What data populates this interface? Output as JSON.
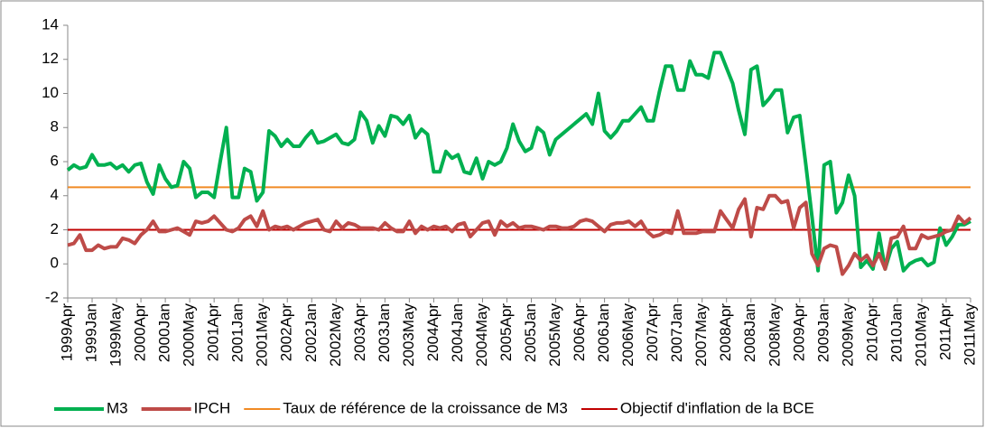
{
  "chart_data": {
    "type": "line",
    "categories": [
      "1999Apr",
      null,
      null,
      null,
      "1999Jan",
      null,
      null,
      null,
      "1999May",
      null,
      null,
      null,
      "2000Apr",
      null,
      null,
      null,
      "2000Jan",
      null,
      null,
      null,
      "2000May",
      null,
      null,
      null,
      "2001Apr",
      null,
      null,
      null,
      "2001Jan",
      null,
      null,
      null,
      "2001May",
      null,
      null,
      null,
      "2002Apr",
      null,
      null,
      null,
      "2002Jan",
      null,
      null,
      null,
      "2002May",
      null,
      null,
      null,
      "2003Apr",
      null,
      null,
      null,
      "2003Jan",
      null,
      null,
      null,
      "2003May",
      null,
      null,
      null,
      "2004Apr",
      null,
      null,
      null,
      "2004Jan",
      null,
      null,
      null,
      "2004May",
      null,
      null,
      null,
      "2005Apr",
      null,
      null,
      null,
      "2005Jan",
      null,
      null,
      null,
      "2005May",
      null,
      null,
      null,
      "2006Apr",
      null,
      null,
      null,
      "2006Jan",
      null,
      null,
      null,
      "2006May",
      null,
      null,
      null,
      "2007Apr",
      null,
      null,
      null,
      "2007Jan",
      null,
      null,
      null,
      "2007May",
      null,
      null,
      null,
      "2008Apr",
      null,
      null,
      null,
      "2008Jan",
      null,
      null,
      null,
      "2008May",
      null,
      null,
      null,
      "2009Apr",
      null,
      null,
      null,
      "2009Jan",
      null,
      null,
      null,
      "2009May",
      null,
      null,
      null,
      "2010Apr",
      null,
      null,
      null,
      "2010Jan",
      null,
      null,
      null,
      "2010May",
      null,
      null,
      null,
      "2011Apr",
      null,
      null,
      null,
      "2011May"
    ],
    "series": [
      {
        "name": "M3",
        "color": "#00b050",
        "width": 4,
        "values": [
          5.5,
          5.8,
          5.6,
          5.7,
          6.4,
          5.8,
          5.8,
          5.9,
          5.6,
          5.8,
          5.4,
          5.8,
          5.9,
          4.8,
          4.1,
          5.8,
          5.0,
          4.5,
          4.6,
          6.0,
          5.6,
          3.9,
          4.2,
          4.2,
          3.9,
          6.0,
          8.0,
          3.9,
          3.9,
          5.6,
          5.4,
          3.7,
          4.2,
          7.8,
          7.5,
          6.9,
          7.3,
          6.9,
          6.9,
          7.4,
          7.8,
          7.1,
          7.2,
          7.4,
          7.6,
          7.1,
          7.0,
          7.3,
          8.9,
          8.4,
          7.1,
          8.1,
          7.5,
          8.7,
          8.6,
          8.2,
          8.7,
          7.4,
          7.9,
          7.6,
          5.4,
          5.4,
          6.6,
          6.2,
          6.4,
          5.4,
          5.3,
          6.2,
          5.0,
          6.0,
          5.8,
          6.0,
          6.8,
          8.2,
          7.2,
          6.6,
          6.8,
          8.0,
          7.7,
          6.4,
          7.3,
          7.6,
          7.9,
          8.2,
          8.5,
          8.8,
          8.2,
          10.0,
          7.8,
          7.4,
          7.8,
          8.4,
          8.4,
          8.8,
          9.2,
          8.4,
          8.4,
          10.1,
          11.6,
          11.6,
          10.2,
          10.2,
          11.9,
          11.1,
          11.1,
          10.9,
          12.4,
          12.4,
          11.5,
          10.6,
          9.0,
          7.6,
          11.4,
          11.6,
          9.3,
          9.7,
          10.2,
          10.2,
          7.7,
          8.6,
          8.7,
          5.8,
          2.8,
          -0.4,
          5.8,
          6.0,
          3.0,
          3.6,
          5.2,
          4.0,
          -0.2,
          0.2,
          -0.3,
          1.8,
          -0.3,
          0.9,
          1.3,
          -0.4,
          0.0,
          0.2,
          0.3,
          -0.1,
          0.1,
          2.1,
          1.1,
          1.6,
          2.3,
          2.3,
          2.5
        ]
      },
      {
        "name": "IPCH",
        "color": "#be4b48",
        "width": 4,
        "values": [
          1.1,
          1.2,
          1.7,
          0.8,
          0.8,
          1.1,
          0.9,
          1.0,
          1.0,
          1.5,
          1.4,
          1.2,
          1.7,
          2.0,
          2.5,
          1.9,
          1.9,
          2.0,
          2.1,
          1.9,
          1.7,
          2.5,
          2.4,
          2.5,
          2.8,
          2.4,
          2.0,
          1.9,
          2.1,
          2.6,
          2.8,
          2.2,
          3.1,
          2.0,
          2.2,
          2.1,
          2.2,
          2.0,
          2.2,
          2.4,
          2.5,
          2.6,
          2.0,
          1.9,
          2.5,
          2.1,
          2.4,
          2.3,
          2.1,
          2.1,
          2.1,
          2.0,
          2.4,
          2.1,
          1.9,
          1.9,
          2.5,
          1.8,
          2.2,
          2.0,
          2.2,
          2.1,
          2.2,
          1.9,
          2.3,
          2.4,
          1.6,
          2.0,
          2.4,
          2.5,
          1.7,
          2.5,
          2.2,
          2.4,
          2.1,
          2.2,
          2.2,
          2.1,
          2.0,
          2.2,
          2.2,
          2.1,
          2.1,
          2.2,
          2.5,
          2.6,
          2.5,
          2.2,
          1.9,
          2.3,
          2.4,
          2.4,
          2.5,
          2.2,
          2.5,
          1.9,
          1.6,
          1.7,
          1.9,
          1.8,
          3.1,
          1.8,
          1.8,
          1.8,
          1.9,
          1.9,
          1.9,
          3.1,
          2.6,
          2.1,
          3.2,
          3.8,
          1.6,
          3.3,
          3.2,
          4.0,
          4.0,
          3.6,
          3.7,
          2.1,
          3.3,
          3.6,
          0.6,
          -0.1,
          0.9,
          1.1,
          1.0,
          -0.6,
          -0.1,
          0.6,
          0.2,
          0.5,
          -0.1,
          0.6,
          -0.3,
          1.5,
          1.6,
          2.2,
          0.9,
          0.9,
          1.7,
          1.5,
          1.6,
          1.7,
          1.9,
          2.0,
          2.8,
          2.4,
          2.7
        ]
      }
    ],
    "reference_lines": [
      {
        "name": "Taux de référence de la croissance de M3",
        "value": 4.5,
        "color": "#f08a24"
      },
      {
        "name": "Objectif d'inflation de la BCE",
        "value": 2,
        "color": "#c00000"
      }
    ],
    "ylim": [
      -2,
      14
    ],
    "yticks": [
      -2,
      0,
      2,
      4,
      6,
      8,
      10,
      12,
      14
    ],
    "legend": "bottom"
  }
}
